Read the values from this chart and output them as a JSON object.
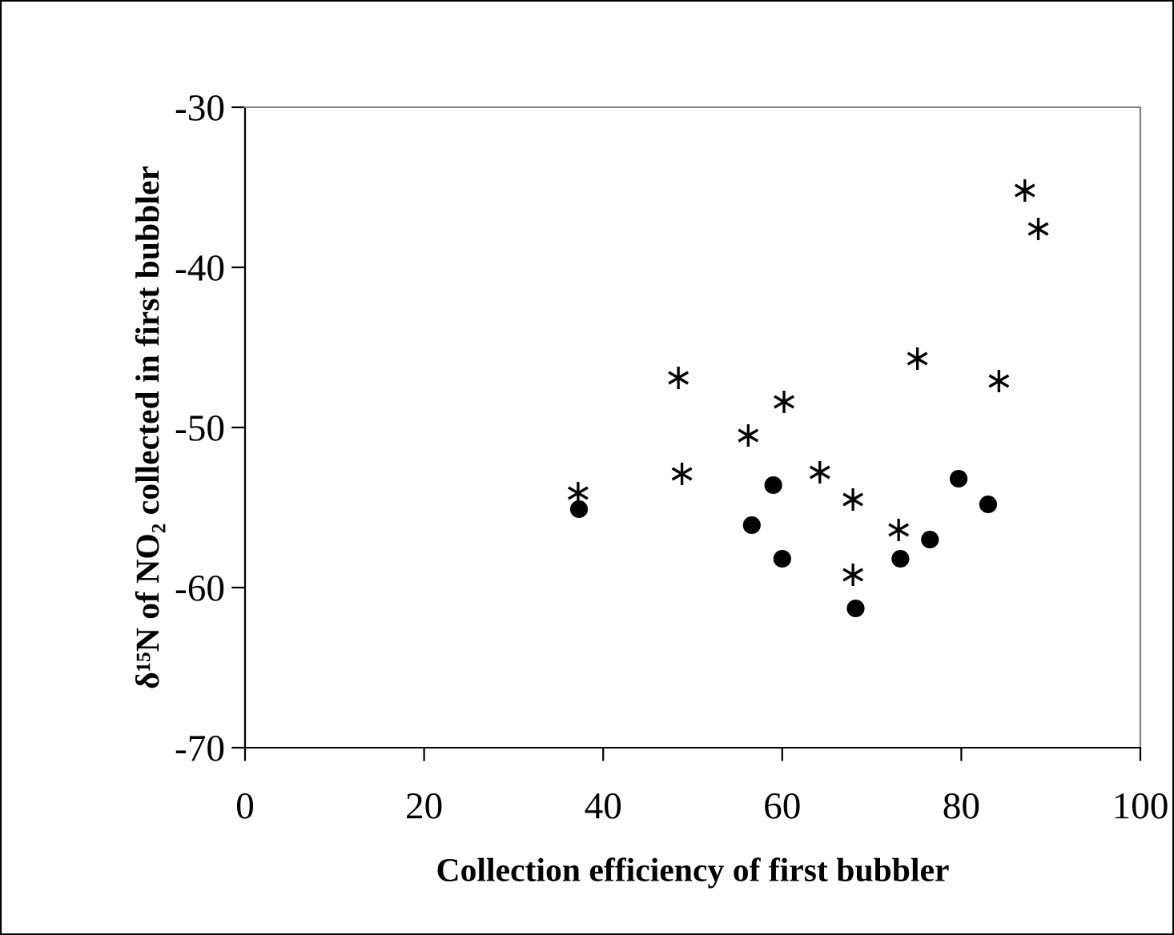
{
  "chart_data": {
    "type": "scatter",
    "xlabel": "Collection efficiency of first bubbler",
    "ylabel": "δ¹⁵N of NO₂ collected in first bubbler",
    "xlim": [
      0,
      100
    ],
    "xticks": [
      0,
      20,
      40,
      60,
      80,
      100
    ],
    "ylim": [
      -70,
      -30
    ],
    "yticks": [
      -70,
      -60,
      -50,
      -40,
      -30
    ],
    "grid": false,
    "series": [
      {
        "color": "#000000",
        "marker": "cross",
        "x": [
          37.2,
          48.4,
          48.8,
          56.2,
          60.2,
          64.2,
          67.9,
          67.9,
          73.0,
          75.1,
          84.2,
          87.1,
          88.6
        ],
        "values": [
          -54.1,
          -46.9,
          -52.9,
          -50.5,
          -48.4,
          -52.8,
          -54.5,
          -59.2,
          -56.4,
          -45.7,
          -47.1,
          -35.2,
          -37.6
        ]
      },
      {
        "color": "#000000",
        "marker": "circle",
        "x": [
          37.3,
          56.6,
          59.0,
          60.0,
          68.2,
          73.2,
          76.5,
          79.7,
          83.0
        ],
        "values": [
          -55.1,
          -56.1,
          -53.6,
          -58.2,
          -61.3,
          -58.2,
          -57.0,
          -53.2,
          -54.8
        ]
      }
    ]
  }
}
